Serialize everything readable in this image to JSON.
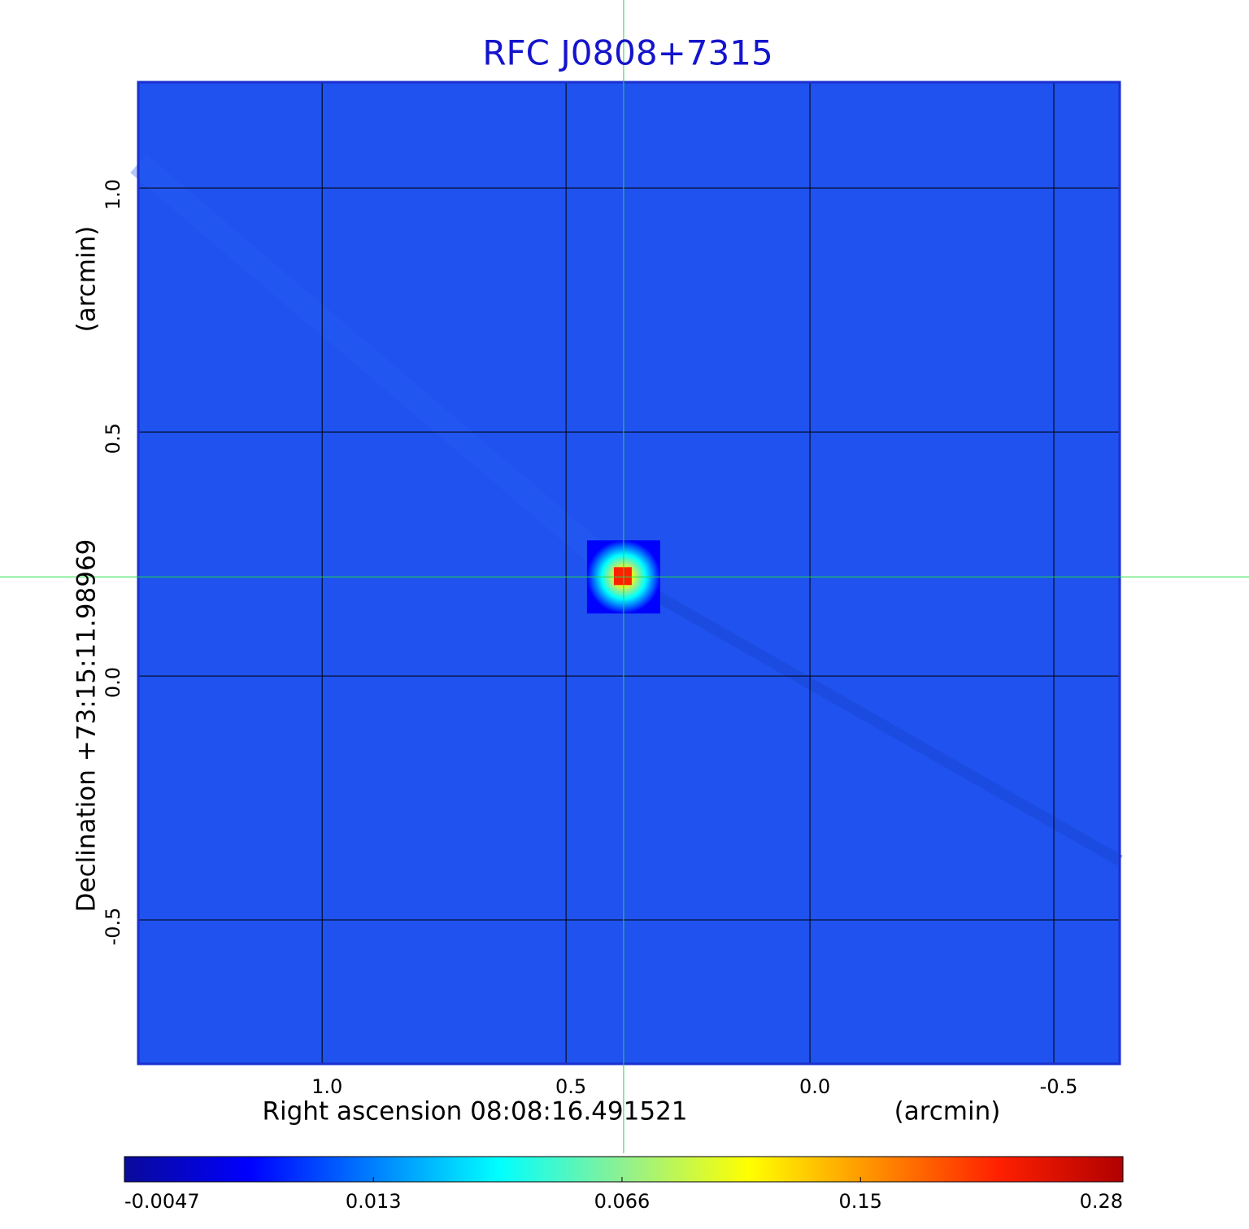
{
  "chart_data": {
    "type": "heatmap",
    "title": "RFC J0808+7315",
    "x_label": "Right ascension  08:08:16.491521",
    "x_unit": "(arcmin)",
    "y_label": "Declination  +73:15:11.98969",
    "y_unit": "(arcmin)",
    "xlim": [
      1.377,
      -0.635
    ],
    "xticks": [
      {
        "value": 1,
        "label": "1.0"
      },
      0.5,
      {
        "value": 0,
        "label": "0.0"
      },
      -0.5
    ],
    "ylim": [
      -0.795,
      1.217
    ],
    "yticks": [
      {
        "value": 1,
        "label": "1.0"
      },
      0.5,
      {
        "value": 0,
        "label": "0.0"
      },
      -0.5
    ],
    "grid": true,
    "background_color": "#1f52ee",
    "marker": {
      "x": 0.382,
      "y": 0.203,
      "color": "#22dd44"
    },
    "colorbar": {
      "lim": [
        -0.0047,
        0.28
      ],
      "scale": "sqrt",
      "ticks": [
        -0.0047,
        0.013,
        0.066,
        0.15,
        0.28
      ],
      "colors": [
        "#0a0a9a",
        "#0000ff",
        "#0080ff",
        "#00ffff",
        "#90f090",
        "#ffff00",
        "#ff9000",
        "#ff2000",
        "#b00000"
      ]
    }
  }
}
